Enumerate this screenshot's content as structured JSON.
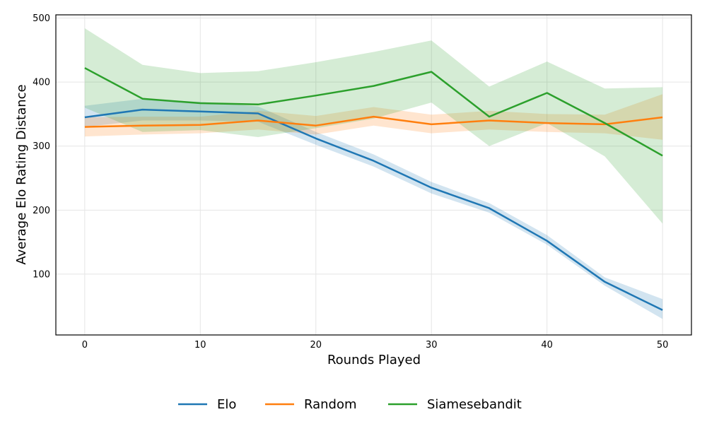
{
  "chart_data": {
    "type": "line",
    "title": "",
    "xlabel": "Rounds Played",
    "ylabel": "Average Elo Rating Distance",
    "xlim": [
      -2.5,
      52.5
    ],
    "ylim": [
      5,
      505
    ],
    "xticks": [
      0,
      10,
      20,
      30,
      40,
      50
    ],
    "yticks": [
      100,
      200,
      300,
      400,
      500
    ],
    "grid": true,
    "legend_position": "bottom-center",
    "x": [
      0,
      5,
      10,
      15,
      20,
      25,
      30,
      35,
      40,
      45,
      50
    ],
    "series": [
      {
        "name": "Elo",
        "color": "#1f77b4",
        "values": [
          345,
          357,
          354,
          351,
          312,
          277,
          235,
          203,
          152,
          88,
          44
        ],
        "band_low": [
          330,
          340,
          340,
          338,
          302,
          268,
          226,
          196,
          146,
          82,
          30
        ],
        "band_high": [
          363,
          374,
          369,
          362,
          322,
          287,
          244,
          211,
          161,
          95,
          61
        ]
      },
      {
        "name": "Random",
        "color": "#ff7f0e",
        "values": [
          330,
          332,
          333,
          340,
          332,
          346,
          334,
          340,
          336,
          334,
          345
        ],
        "band_low": [
          315,
          318,
          320,
          326,
          318,
          332,
          320,
          326,
          322,
          320,
          310
        ],
        "band_high": [
          345,
          346,
          346,
          355,
          347,
          361,
          349,
          355,
          350,
          349,
          381
        ]
      },
      {
        "name": "Siamesebandit",
        "color": "#2ca02c",
        "values": [
          422,
          374,
          367,
          365,
          379,
          394,
          416,
          346,
          383,
          336,
          285
        ],
        "band_low": [
          360,
          322,
          325,
          314,
          328,
          343,
          368,
          300,
          336,
          284,
          179
        ],
        "band_high": [
          484,
          427,
          414,
          417,
          431,
          447,
          465,
          393,
          432,
          390,
          392
        ]
      }
    ]
  }
}
